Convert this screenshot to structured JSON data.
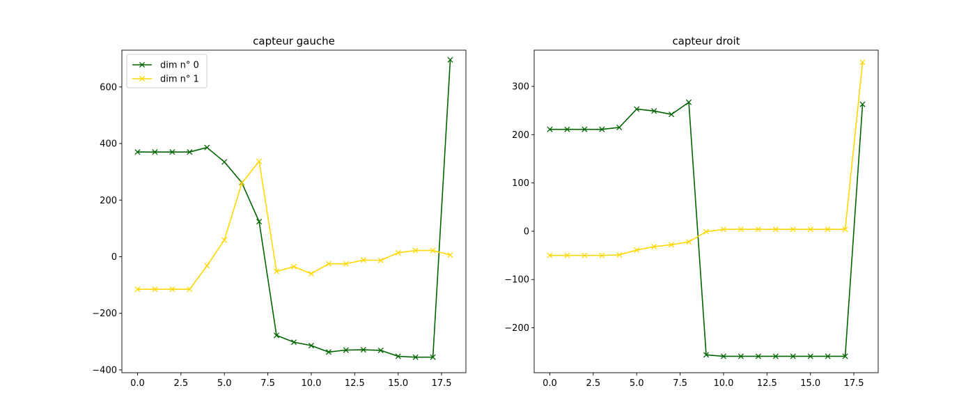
{
  "chart_data": [
    {
      "type": "line",
      "title": "capteur gauche",
      "xlabel": "",
      "ylabel": "",
      "xlim": [
        -0.9,
        18.9
      ],
      "ylim": [
        -410,
        730
      ],
      "xticks": [
        0.0,
        2.5,
        5.0,
        7.5,
        10.0,
        12.5,
        15.0,
        17.5
      ],
      "xtick_labels": [
        "0.0",
        "2.5",
        "5.0",
        "7.5",
        "10.0",
        "12.5",
        "15.0",
        "17.5"
      ],
      "yticks": [
        -400,
        -200,
        0,
        200,
        400,
        600
      ],
      "ytick_labels": [
        "−400",
        "−200",
        "0",
        "200",
        "400",
        "600"
      ],
      "grid": false,
      "legend": "top-left",
      "x": [
        0,
        1,
        2,
        3,
        4,
        5,
        6,
        7,
        8,
        9,
        10,
        11,
        12,
        13,
        14,
        15,
        16,
        17,
        18
      ],
      "series": [
        {
          "name": "dim n° 0",
          "color": "#006400",
          "marker": "x",
          "values": [
            370,
            370,
            370,
            370,
            386,
            335,
            262,
            124,
            -278,
            -302,
            -314,
            -337,
            -330,
            -329,
            -331,
            -352,
            -355,
            -355,
            696
          ]
        },
        {
          "name": "dim n° 1",
          "color": "#FFD700",
          "marker": "x",
          "values": [
            -115,
            -115,
            -115,
            -115,
            -32,
            59,
            260,
            337,
            -52,
            -35,
            -60,
            -25,
            -25,
            -12,
            -13,
            14,
            22,
            22,
            6
          ]
        }
      ]
    },
    {
      "type": "line",
      "title": "capteur droit",
      "xlabel": "",
      "ylabel": "",
      "xlim": [
        -0.9,
        18.9
      ],
      "ylim": [
        -293,
        375
      ],
      "xticks": [
        0.0,
        2.5,
        5.0,
        7.5,
        10.0,
        12.5,
        15.0,
        17.5
      ],
      "xtick_labels": [
        "0.0",
        "2.5",
        "5.0",
        "7.5",
        "10.0",
        "12.5",
        "15.0",
        "17.5"
      ],
      "yticks": [
        -200,
        -100,
        0,
        100,
        200,
        300
      ],
      "ytick_labels": [
        "−200",
        "−100",
        "0",
        "100",
        "200",
        "300"
      ],
      "grid": false,
      "legend": "none",
      "x": [
        0,
        1,
        2,
        3,
        4,
        5,
        6,
        7,
        8,
        9,
        10,
        11,
        12,
        13,
        14,
        15,
        16,
        17,
        18
      ],
      "series": [
        {
          "color": "#006400",
          "marker": "x",
          "values": [
            211,
            211,
            211,
            211,
            215,
            253,
            249,
            242,
            267,
            -256,
            -259,
            -259,
            -259,
            -259,
            -259,
            -259,
            -259,
            -259,
            263
          ]
        },
        {
          "color": "#FFD700",
          "marker": "x",
          "values": [
            -50,
            -50,
            -50,
            -50,
            -49,
            -39,
            -32,
            -28,
            -22,
            -1,
            4,
            4,
            4,
            4,
            4,
            4,
            4,
            4,
            350
          ]
        }
      ]
    }
  ]
}
